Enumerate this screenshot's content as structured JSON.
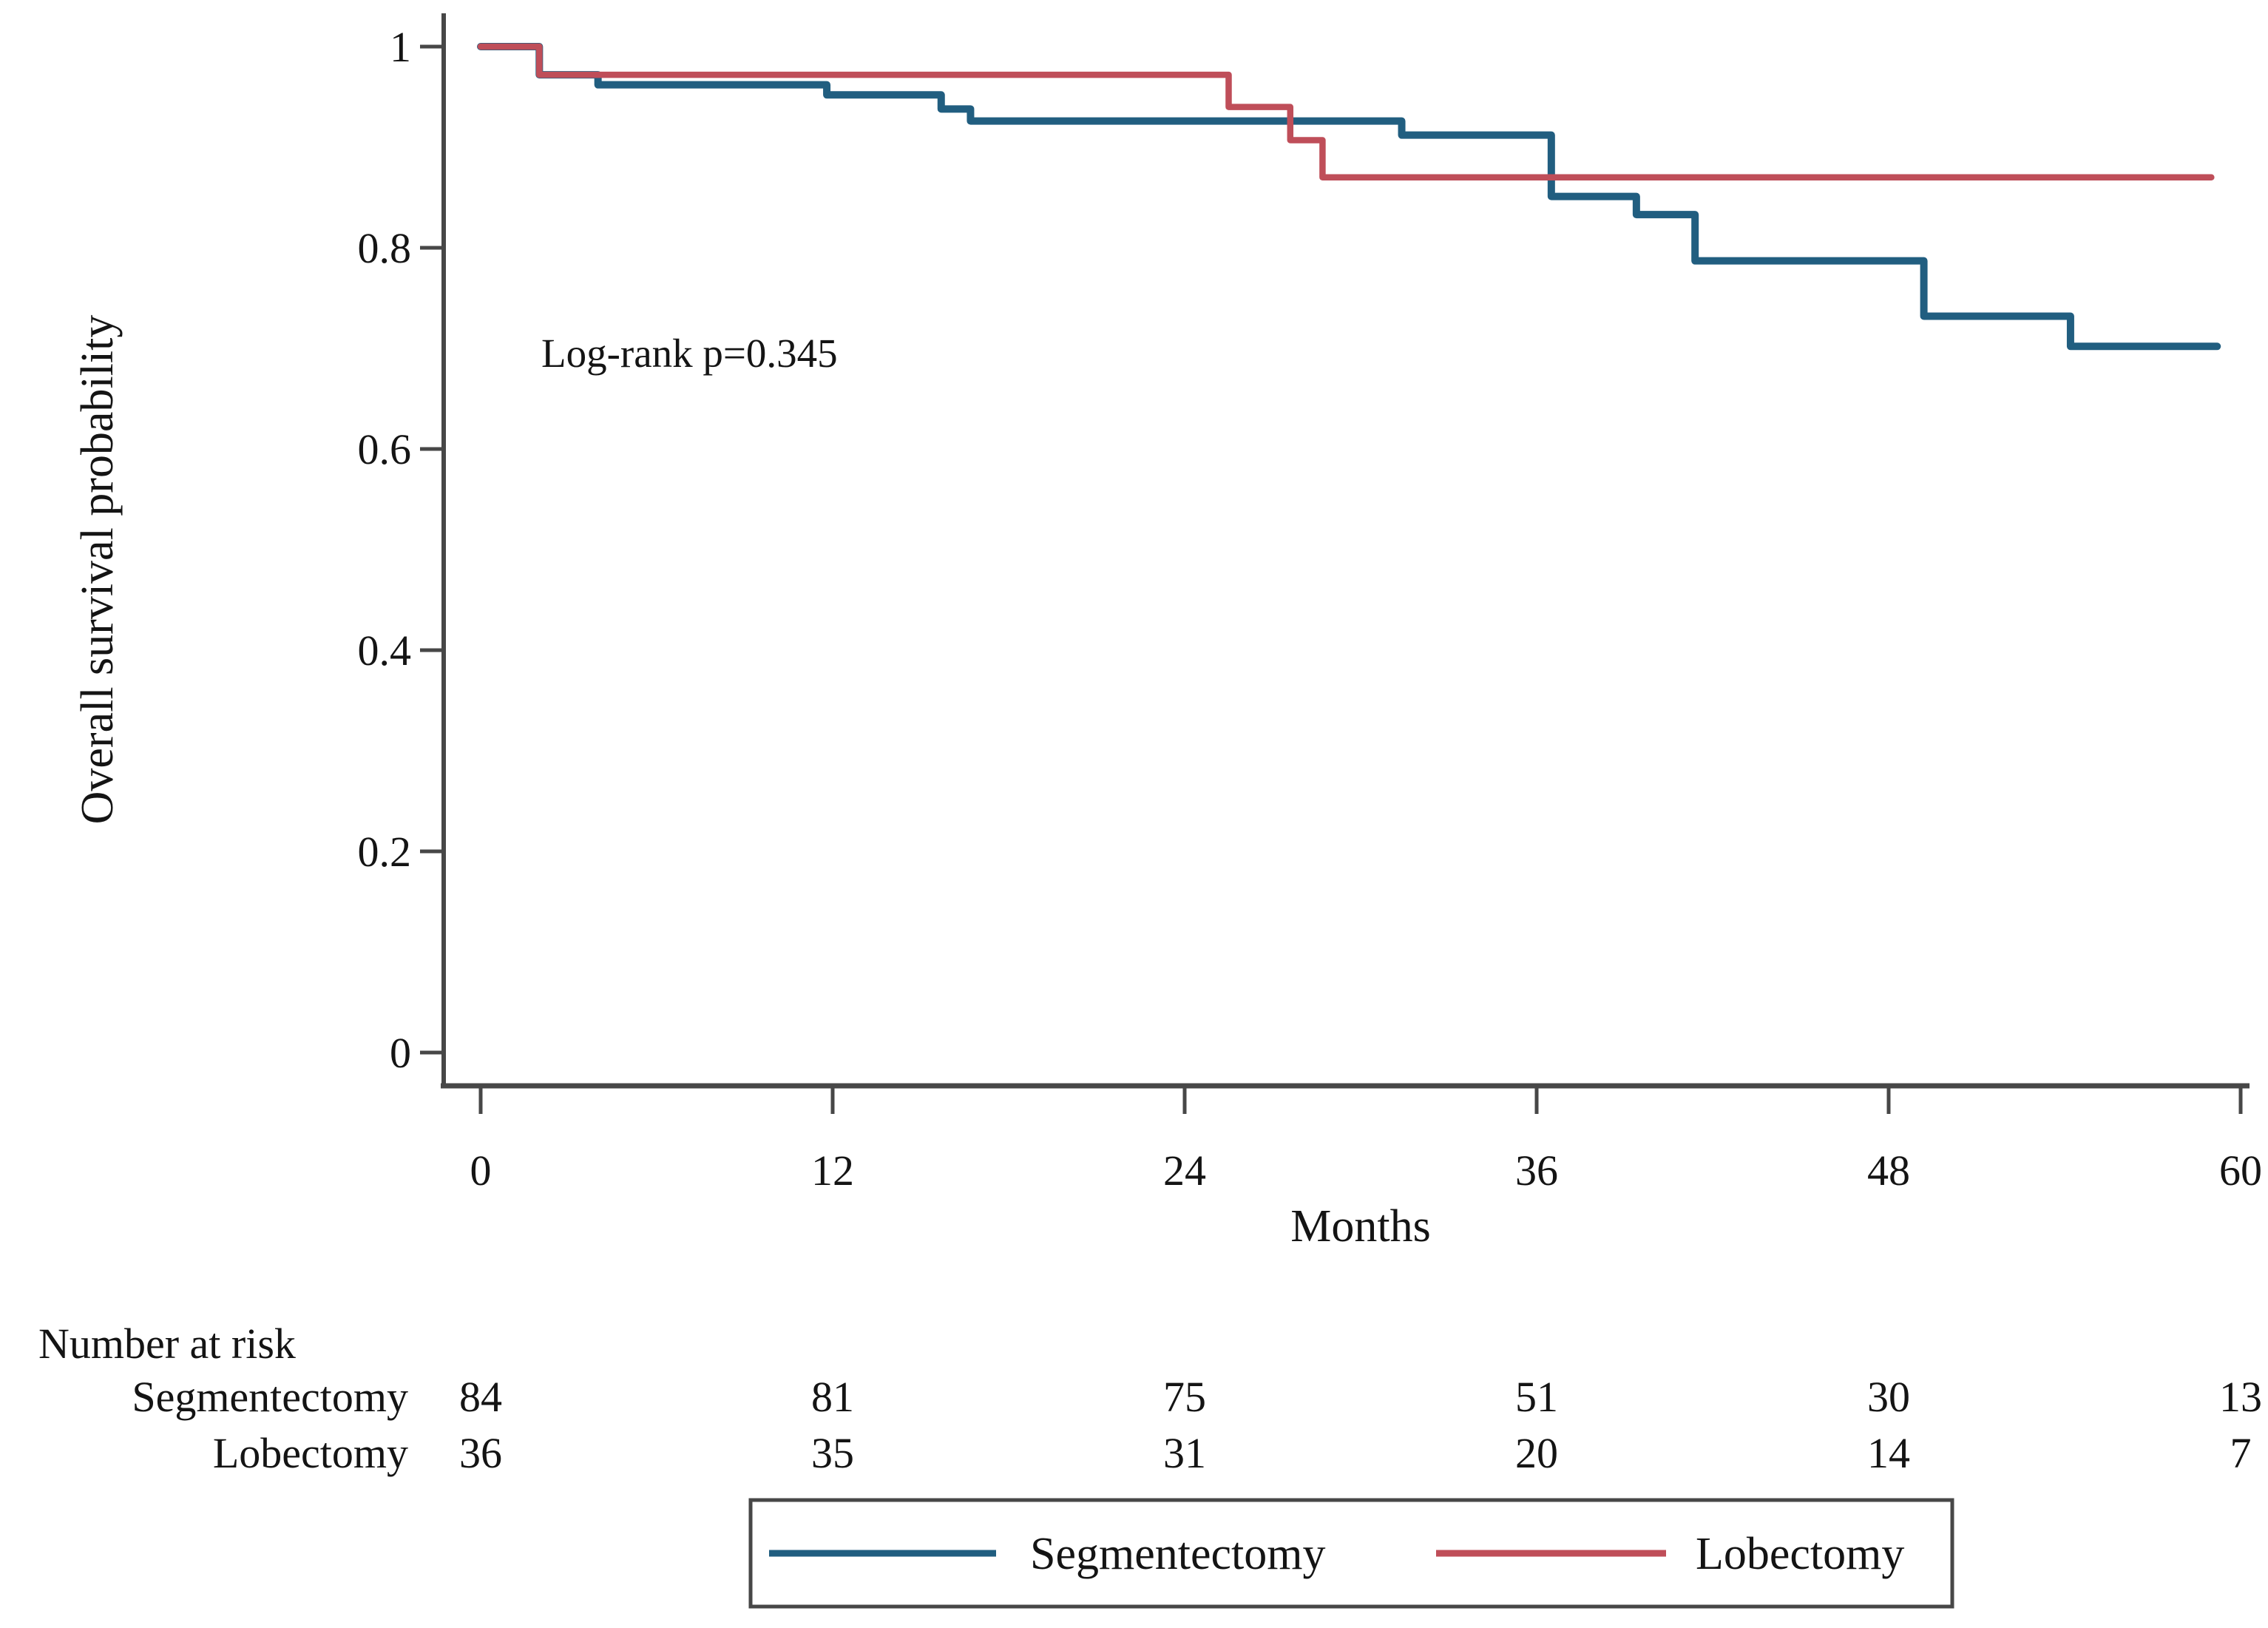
{
  "figure": {
    "background": "#ffffff",
    "text_color": "#141414",
    "axis_color": "#474747"
  },
  "chart_data": {
    "type": "line",
    "subtype": "kaplan-meier-step",
    "title": "",
    "xlabel": "Months",
    "ylabel": "Overall survival probability",
    "xlim": [
      0,
      60
    ],
    "ylim": [
      0,
      1
    ],
    "xticks": [
      0,
      12,
      24,
      36,
      48,
      60
    ],
    "yticks": [
      1,
      0.8,
      0.6,
      0.4,
      0.2,
      0
    ],
    "grid": false,
    "annotation": "Log-rank p=0.345",
    "legend_position": "bottom-boxed",
    "series": [
      {
        "name": "Segmentectomy",
        "color": "#215e80",
        "end_x": 59.2,
        "steps": [
          [
            0,
            1
          ],
          [
            2,
            0.972
          ],
          [
            4,
            0.962
          ],
          [
            11.8,
            0.952
          ],
          [
            15.7,
            0.938
          ],
          [
            16.7,
            0.926
          ],
          [
            31.4,
            0.912
          ],
          [
            36.5,
            0.851
          ],
          [
            39.4,
            0.833
          ],
          [
            41.4,
            0.787
          ],
          [
            49.2,
            0.732
          ],
          [
            54.2,
            0.702
          ]
        ]
      },
      {
        "name": "Lobectomy",
        "color": "#bf4e59",
        "end_x": 59.0,
        "steps": [
          [
            0,
            1
          ],
          [
            2,
            0.972
          ],
          [
            25.5,
            0.94
          ],
          [
            27.6,
            0.907
          ],
          [
            28.7,
            0.87
          ]
        ]
      }
    ],
    "risk_table": {
      "title": "Number at risk",
      "time_points": [
        0,
        12,
        24,
        36,
        48,
        60
      ],
      "rows": [
        {
          "label": "Segmentectomy",
          "values": [
            "84",
            "81",
            "75",
            "51",
            "30",
            "13"
          ]
        },
        {
          "label": "Lobectomy",
          "values": [
            "36",
            "35",
            "31",
            "20",
            "14",
            "7"
          ]
        }
      ]
    },
    "legend": {
      "entries": [
        {
          "label": "Segmentectomy",
          "color": "#215e80"
        },
        {
          "label": "Lobectomy",
          "color": "#bf4e59"
        }
      ]
    }
  }
}
